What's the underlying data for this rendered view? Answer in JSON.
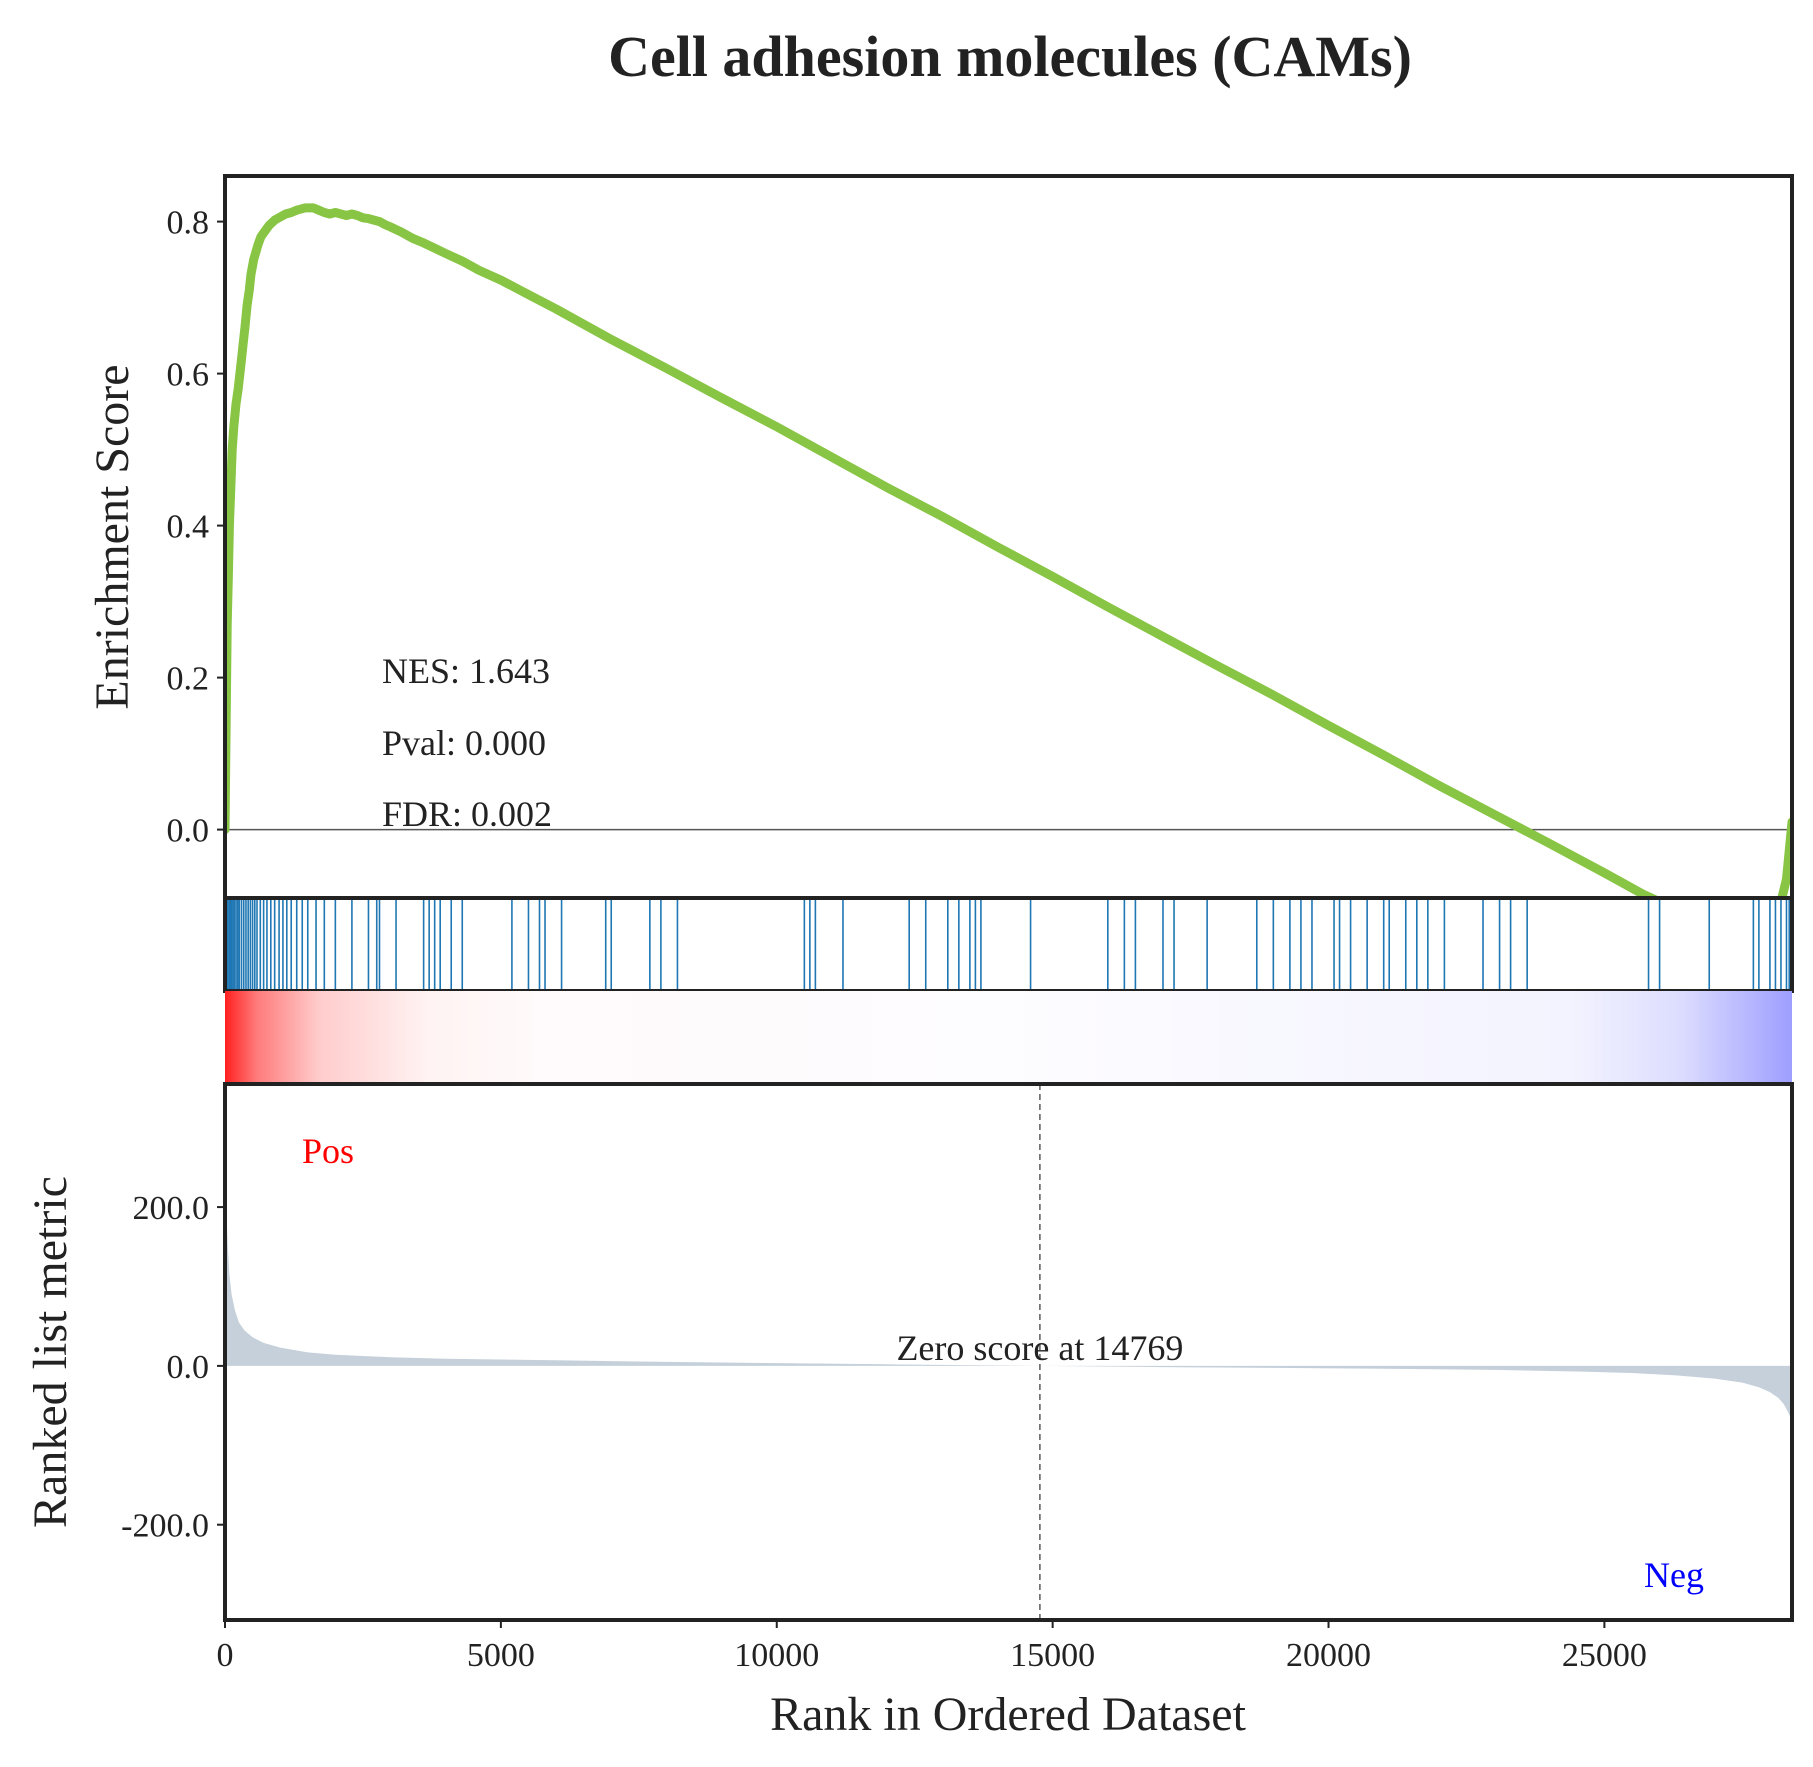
{
  "chart_data": {
    "type": "line",
    "title": "Cell adhesion molecules (CAMs)",
    "xlabel": "Rank in Ordered Dataset",
    "es_panel": {
      "ylabel": "Enrichment Score",
      "ylim": [
        -0.09,
        0.86
      ],
      "yticks": [
        0.0,
        0.2,
        0.4,
        0.6,
        0.8
      ],
      "ytick_labels": [
        "0.0",
        "0.2",
        "0.4",
        "0.6",
        "0.8"
      ],
      "line_color": "#88c544",
      "curve": {
        "x": [
          0,
          40,
          60,
          80,
          110,
          130,
          160,
          200,
          240,
          270,
          300,
          330,
          360,
          400,
          440,
          470,
          520,
          560,
          600,
          650,
          700,
          800,
          900,
          1000,
          1100,
          1200,
          1300,
          1450,
          1600,
          1700,
          1800,
          1900,
          2000,
          2100,
          2200,
          2300,
          2400,
          2500,
          2600,
          2700,
          2800,
          2900,
          3000,
          3200,
          3400,
          3600,
          3800,
          4000,
          4300,
          4600,
          5000,
          5500,
          6000,
          7000,
          8000,
          9000,
          10000,
          11000,
          12000,
          13000,
          14000,
          15000,
          16000,
          17000,
          18000,
          19000,
          20000,
          21000,
          22000,
          23000,
          24000,
          25000,
          25700,
          26000,
          26500,
          26900,
          27200,
          27500,
          27700,
          27900,
          28100,
          28200,
          28300,
          28400
        ],
        "y": [
          0.0,
          0.27,
          0.33,
          0.4,
          0.46,
          0.5,
          0.53,
          0.56,
          0.58,
          0.6,
          0.62,
          0.64,
          0.66,
          0.69,
          0.71,
          0.73,
          0.75,
          0.76,
          0.77,
          0.78,
          0.785,
          0.795,
          0.802,
          0.806,
          0.81,
          0.812,
          0.815,
          0.818,
          0.818,
          0.815,
          0.812,
          0.81,
          0.812,
          0.81,
          0.808,
          0.81,
          0.808,
          0.805,
          0.804,
          0.802,
          0.8,
          0.796,
          0.793,
          0.786,
          0.778,
          0.772,
          0.765,
          0.758,
          0.748,
          0.736,
          0.723,
          0.704,
          0.685,
          0.645,
          0.607,
          0.568,
          0.53,
          0.49,
          0.45,
          0.412,
          0.372,
          0.333,
          0.293,
          0.254,
          0.215,
          0.177,
          0.137,
          0.098,
          0.058,
          0.02,
          -0.018,
          -0.057,
          -0.085,
          -0.095,
          -0.105,
          -0.115,
          -0.12,
          -0.125,
          -0.12,
          -0.128,
          -0.12,
          -0.095,
          -0.065,
          0.01
        ]
      },
      "annotations": [
        "NES: 1.643",
        "Pval: 0.000",
        "FDR: 0.002"
      ]
    },
    "hits": {
      "color": "#1f77b4",
      "positions": [
        5,
        40,
        70,
        95,
        120,
        145,
        170,
        200,
        230,
        260,
        300,
        340,
        380,
        420,
        460,
        500,
        540,
        580,
        640,
        700,
        760,
        830,
        900,
        980,
        1050,
        1120,
        1200,
        1300,
        1400,
        1500,
        1650,
        1800,
        2000,
        2300,
        2600,
        2750,
        2800,
        3100,
        3600,
        3700,
        3800,
        3900,
        4100,
        4300,
        5200,
        5500,
        5700,
        5800,
        6100,
        6900,
        7000,
        7700,
        7900,
        8200,
        10500,
        10600,
        10700,
        11200,
        12400,
        12700,
        13100,
        13300,
        13500,
        13600,
        13700,
        14600,
        16000,
        16300,
        16500,
        17000,
        17200,
        17800,
        18700,
        19000,
        19300,
        19500,
        19700,
        20100,
        20200,
        20400,
        20700,
        21000,
        21100,
        21400,
        21600,
        21800,
        22100,
        22800,
        23100,
        23300,
        23600,
        25800,
        26000,
        26900,
        27700,
        27800,
        28000,
        28100,
        28200,
        28300,
        28350,
        28400
      ]
    },
    "rank_panel": {
      "ylabel": "Ranked list metric",
      "ylim": [
        -320,
        355
      ],
      "yticks": [
        -200,
        0,
        200
      ],
      "ytick_labels": [
        "-200.0",
        "0.0",
        "200.0"
      ],
      "fill_color": "#c5d0da",
      "metric": {
        "x": [
          0,
          20,
          50,
          80,
          120,
          180,
          250,
          350,
          500,
          700,
          1000,
          1500,
          2000,
          3000,
          4000,
          6000,
          8000,
          10000,
          12000,
          14769,
          17000,
          19000,
          21000,
          23000,
          24500,
          25500,
          26300,
          27000,
          27500,
          27800,
          28000,
          28150,
          28250,
          28320,
          28380,
          28400
        ],
        "y": [
          270,
          200,
          150,
          115,
          90,
          70,
          55,
          45,
          36,
          29,
          23,
          17,
          14,
          11,
          9,
          7,
          5,
          3.5,
          2,
          0,
          -1.5,
          -2.5,
          -3.5,
          -5,
          -7,
          -9,
          -12,
          -16,
          -21,
          -27,
          -33,
          -40,
          -48,
          -57,
          -66,
          -72
        ]
      },
      "zero_cross": 14769,
      "zero_label": "Zero score at 14769",
      "pos_label": "Pos",
      "neg_label": "Neg",
      "pos_color": "#ff0000",
      "neg_color": "#0000ff"
    },
    "xlim": [
      0,
      28400
    ],
    "xticks": [
      0,
      5000,
      10000,
      15000,
      20000,
      25000
    ],
    "xtick_labels": [
      "0",
      "5000",
      "10000",
      "15000",
      "20000",
      "25000"
    ]
  }
}
